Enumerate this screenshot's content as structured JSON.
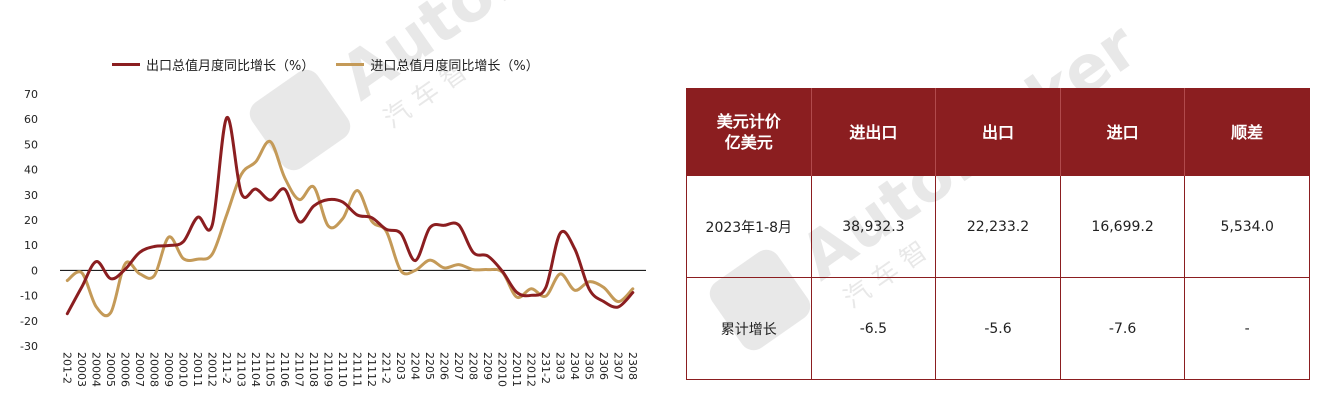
{
  "legend": {
    "export_label": "出口总值月度同比增长（%）",
    "import_label": "进口总值月度同比增长（%）"
  },
  "colors": {
    "export": "#8B1E20",
    "import": "#C49A58",
    "header_bg": "#8B1E20"
  },
  "watermark": {
    "text": "AutoMaker",
    "sub": "汽 车 智",
    "logo": "automaker-logo"
  },
  "chart_data": {
    "type": "line",
    "title": "",
    "xlabel": "",
    "ylabel": "",
    "ylim": [
      -30,
      70
    ],
    "yticks": [
      -30,
      -20,
      -10,
      0,
      10,
      20,
      30,
      40,
      50,
      60,
      70
    ],
    "grid": false,
    "legend_position": "top",
    "categories": [
      "2001-2",
      "2003",
      "2004",
      "2005",
      "2006",
      "2007",
      "2008",
      "2009",
      "2010",
      "2011",
      "2012",
      "2101-2",
      "2103",
      "2104",
      "2105",
      "2106",
      "2107",
      "2108",
      "2109",
      "2110",
      "2111",
      "2112",
      "2201-2",
      "2203",
      "2204",
      "2205",
      "2206",
      "2207",
      "2208",
      "2209",
      "2210",
      "2211",
      "2212",
      "2301-2",
      "2303",
      "2304",
      "2305",
      "2306",
      "2307",
      "2308"
    ],
    "x_tick_labels": [
      "201-2",
      "20003",
      "20004",
      "20005",
      "20006",
      "20007",
      "20008",
      "20009",
      "20010",
      "20011",
      "20012",
      "211-2",
      "21103",
      "21104",
      "21105",
      "21106",
      "21107",
      "21108",
      "21109",
      "21110",
      "21111",
      "21112",
      "221-2",
      "2203",
      "2204",
      "2205",
      "2206",
      "2207",
      "2208",
      "2209",
      "22010",
      "22011",
      "22012",
      "231-2",
      "2303",
      "2304",
      "2305",
      "2306",
      "2307",
      "2308"
    ],
    "series": [
      {
        "name": "出口总值月度同比增长（%）",
        "color": "#8B1E20",
        "values": [
          -17.2,
          -6.6,
          3.5,
          -3.3,
          0.5,
          7.2,
          9.5,
          9.9,
          11.4,
          21.1,
          18.1,
          60.6,
          30.6,
          32.3,
          27.9,
          32.2,
          19.3,
          25.6,
          28.1,
          27.1,
          22.0,
          20.9,
          16.3,
          14.7,
          3.9,
          16.9,
          17.9,
          18.0,
          7.1,
          5.7,
          -0.3,
          -8.7,
          -9.9,
          -6.8,
          14.8,
          8.5,
          -7.5,
          -12.4,
          -14.5,
          -8.8
        ]
      },
      {
        "name": "进口总值月度同比增长（%）",
        "color": "#C49A58",
        "values": [
          -4.0,
          -0.9,
          -14.5,
          -16.7,
          2.7,
          -1.4,
          -2.1,
          13.2,
          4.7,
          4.5,
          6.5,
          22.2,
          38.1,
          43.1,
          51.1,
          36.7,
          28.1,
          33.1,
          17.6,
          20.6,
          31.7,
          19.5,
          15.5,
          -0.1,
          0.0,
          4.1,
          1.0,
          2.3,
          0.3,
          0.3,
          -0.7,
          -10.6,
          -7.3,
          -10.2,
          -1.4,
          -7.9,
          -4.5,
          -6.8,
          -12.4,
          -7.3
        ]
      }
    ]
  },
  "table": {
    "header": [
      {
        "lines": [
          "美元计价",
          "亿美元"
        ]
      },
      {
        "lines": [
          "进出口"
        ]
      },
      {
        "lines": [
          "出口"
        ]
      },
      {
        "lines": [
          "进口"
        ]
      },
      {
        "lines": [
          "顺差"
        ]
      }
    ],
    "rows": [
      [
        "2023年1-8月",
        "38,932.3",
        "22,233.2",
        "16,699.2",
        "5,534.0"
      ],
      [
        "累计增长",
        "-6.5",
        "-5.6",
        "-7.6",
        "-"
      ]
    ]
  }
}
